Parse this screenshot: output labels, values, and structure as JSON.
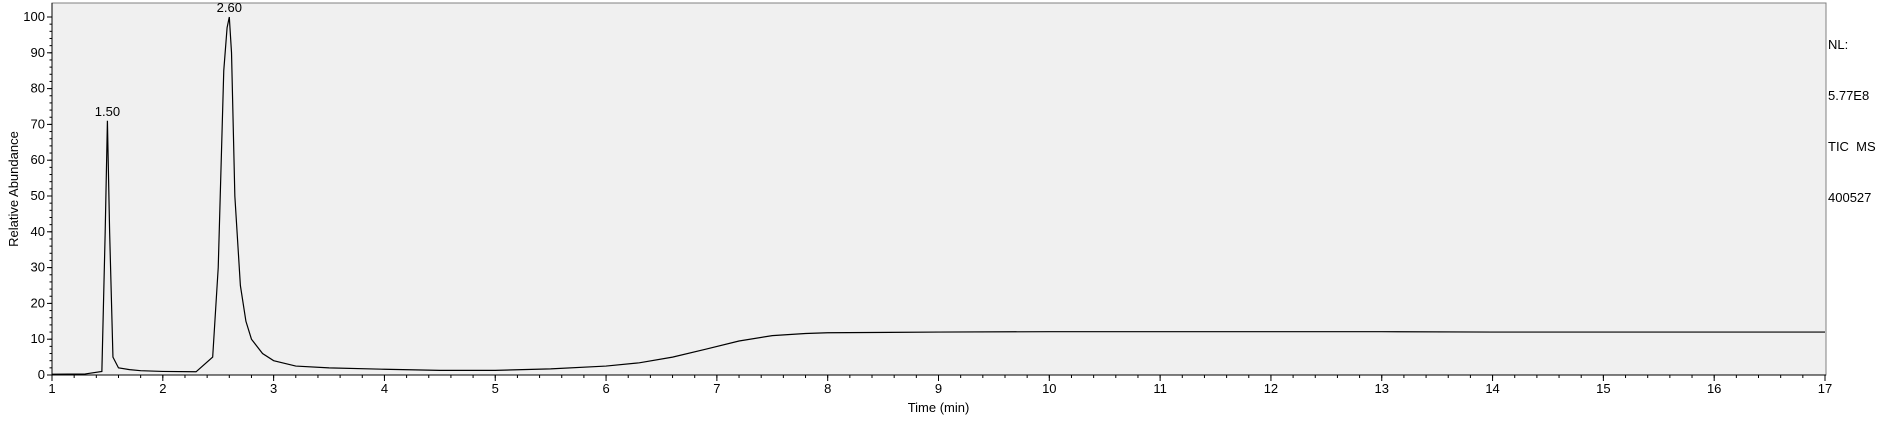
{
  "chart_data": {
    "type": "line",
    "title": "",
    "xlabel": "Time (min)",
    "ylabel": "Relative Abundance",
    "xlim": [
      1,
      17
    ],
    "ylim": [
      0,
      100
    ],
    "xticks": [
      1,
      2,
      3,
      4,
      5,
      6,
      7,
      8,
      9,
      10,
      11,
      12,
      13,
      14,
      15,
      16,
      17
    ],
    "yticks": [
      0,
      10,
      20,
      30,
      40,
      50,
      60,
      70,
      80,
      90,
      100
    ],
    "grid": false,
    "series": [
      {
        "name": "TIC MS 400527",
        "x": [
          1.0,
          1.3,
          1.45,
          1.48,
          1.5,
          1.52,
          1.55,
          1.6,
          1.7,
          1.8,
          2.0,
          2.3,
          2.45,
          2.5,
          2.55,
          2.58,
          2.6,
          2.62,
          2.65,
          2.7,
          2.75,
          2.8,
          2.9,
          3.0,
          3.2,
          3.5,
          4.0,
          4.5,
          5.0,
          5.5,
          6.0,
          6.3,
          6.6,
          6.9,
          7.2,
          7.5,
          7.8,
          8.0,
          9.0,
          10.0,
          11.0,
          12.0,
          13.0,
          14.0,
          15.0,
          16.0,
          17.0
        ],
        "y": [
          0.2,
          0.3,
          1.0,
          40.0,
          71.0,
          40.0,
          5.0,
          2.0,
          1.5,
          1.2,
          1.0,
          0.9,
          5.0,
          30.0,
          85.0,
          97.0,
          100.0,
          90.0,
          50.0,
          25.0,
          15.0,
          10.0,
          6.0,
          4.0,
          2.5,
          2.0,
          1.6,
          1.3,
          1.3,
          1.7,
          2.5,
          3.4,
          5.0,
          7.2,
          9.5,
          11.0,
          11.6,
          11.8,
          12.0,
          12.1,
          12.1,
          12.1,
          12.1,
          12.0,
          12.0,
          12.0,
          12.0
        ]
      }
    ],
    "annotations": [
      {
        "x": 1.5,
        "y": 71,
        "text": "1.50"
      },
      {
        "x": 2.6,
        "y": 100,
        "text": "2.60"
      }
    ]
  },
  "info": {
    "nl_label": "NL:",
    "nl_value": "5.77E8",
    "scan_filter": "TIC  MS",
    "file_id": "400527"
  },
  "colors": {
    "plot_bg": "#f0f0f0",
    "line": "#000000"
  }
}
